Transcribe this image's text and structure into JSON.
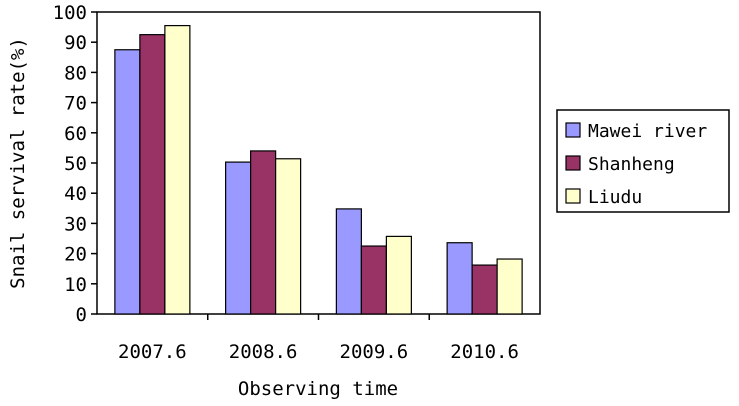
{
  "chart_data": {
    "type": "bar",
    "xlabel": "Observing time",
    "ylabel": "Snail servival rate(%)",
    "ylim": [
      0,
      100
    ],
    "yticks": [
      "0",
      "10",
      "20",
      "30",
      "40",
      "50",
      "60",
      "70",
      "80",
      "90",
      "100"
    ],
    "categories": [
      "2007.6",
      "2008.6",
      "2009.6",
      "2010.6"
    ],
    "grid": false,
    "legend_position": "right",
    "series": [
      {
        "name": "Mawei river",
        "color": "#9999ff",
        "values": [
          87.5,
          50.3,
          34.8,
          23.6
        ]
      },
      {
        "name": "Shanheng",
        "color": "#993366",
        "values": [
          92.5,
          54.0,
          22.5,
          16.2
        ]
      },
      {
        "name": "Liudu",
        "color": "#ffffcc",
        "values": [
          95.5,
          51.4,
          25.7,
          18.2
        ]
      }
    ]
  }
}
